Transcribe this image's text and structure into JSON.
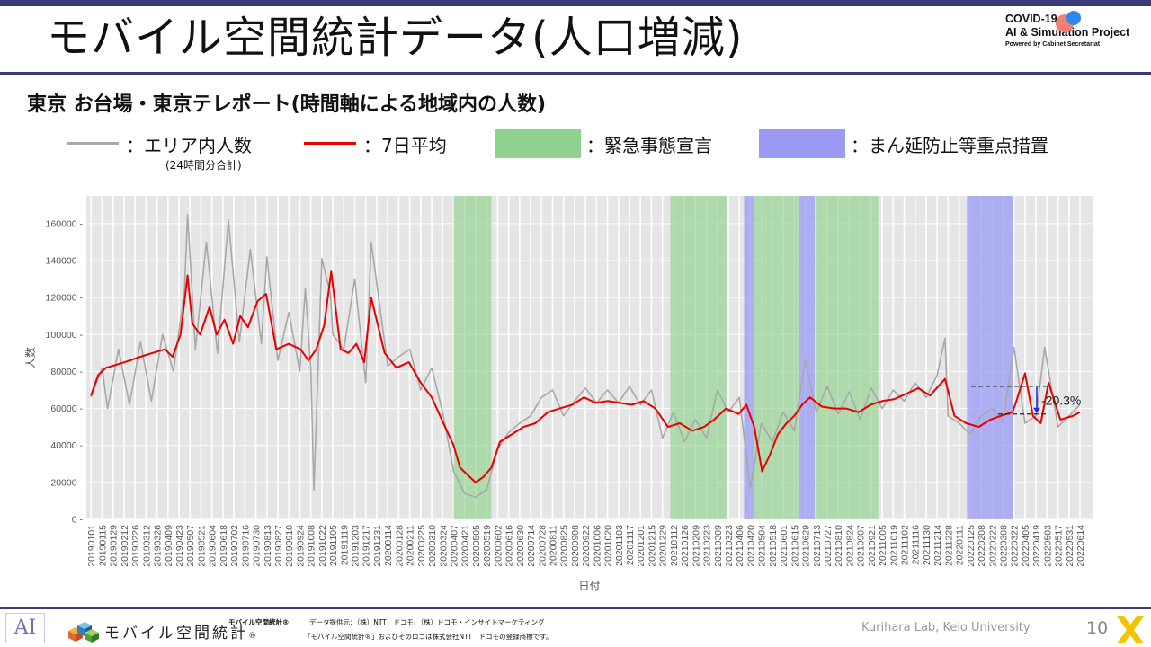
{
  "header": {
    "title": "モバイル空間統計データ(人口増減)",
    "logo_line1": "COVID-19",
    "logo_line2": "AI & Simulation Project",
    "logo_line3": "Powered by Cabinet Secretariat"
  },
  "subtitle": "東京 お台場・東京テレポート(時間軸による地域内の人数)",
  "legend": {
    "raw": "：エリア内人数",
    "raw_note": "(24時間分合計)",
    "avg": "：7日平均",
    "emergency": "：緊急事態宣言",
    "semi": "：まん延防止等重点措置"
  },
  "colors": {
    "header_bar": "#3b3b7a",
    "raw_line": "#a8a8a8",
    "avg_line": "#e60000",
    "emergency_fill": "#8fd28f",
    "semi_fill": "#9a9af5",
    "plot_bg": "#e5e5e5",
    "annotation_arrow": "#1a2ee0"
  },
  "chart_data": {
    "type": "line",
    "xlabel": "日付",
    "ylabel": "人数",
    "ylim": [
      0,
      175000
    ],
    "yticks": [
      0,
      20000,
      40000,
      60000,
      80000,
      100000,
      120000,
      140000,
      160000
    ],
    "xlim": [
      "2018-12-26",
      "2022-06-30"
    ],
    "xtick_labels": [
      "20190101",
      "20190115",
      "20190129",
      "20190212",
      "20190226",
      "20190312",
      "20190326",
      "20190409",
      "20190423",
      "20190507",
      "20190521",
      "20190604",
      "20190618",
      "20190702",
      "20190716",
      "20190730",
      "20190813",
      "20190827",
      "20190910",
      "20190924",
      "20191008",
      "20191022",
      "20191105",
      "20191119",
      "20191203",
      "20191217",
      "20191231",
      "20200114",
      "20200128",
      "20200211",
      "20200225",
      "20200310",
      "20200324",
      "20200407",
      "20200421",
      "20200505",
      "20200519",
      "20200602",
      "20200616",
      "20200630",
      "20200714",
      "20200728",
      "20200811",
      "20200825",
      "20200908",
      "20200922",
      "20201006",
      "20201020",
      "20201103",
      "20201117",
      "20201201",
      "20201215",
      "20201229",
      "20210112",
      "20210126",
      "20210209",
      "20210223",
      "20210309",
      "20210323",
      "20210406",
      "20210420",
      "20210504",
      "20210518",
      "20210601",
      "20210615",
      "20210629",
      "20210713",
      "20210727",
      "20210810",
      "20210824",
      "20210907",
      "20210921",
      "20211005",
      "20211019",
      "20211102",
      "20211116",
      "20211130",
      "20211214",
      "20211228",
      "20220111",
      "20220125",
      "20220208",
      "20220222",
      "20220308",
      "20220322",
      "20220405",
      "20220419",
      "20220503",
      "20220517",
      "20220531",
      "20220614"
    ],
    "emergency_periods": [
      [
        "2020-04-07",
        "2020-05-25"
      ],
      [
        "2021-01-08",
        "2021-03-21"
      ],
      [
        "2021-04-25",
        "2021-06-20"
      ],
      [
        "2021-07-12",
        "2021-09-30"
      ]
    ],
    "semi_periods": [
      [
        "2021-04-12",
        "2021-04-24"
      ],
      [
        "2021-06-21",
        "2021-07-11"
      ],
      [
        "2022-01-21",
        "2022-03-21"
      ]
    ],
    "series": [
      {
        "name": "エリア内人数",
        "x": [
          "2019-01-01",
          "2019-01-15",
          "2019-01-22",
          "2019-02-05",
          "2019-02-19",
          "2019-03-05",
          "2019-03-19",
          "2019-04-02",
          "2019-04-16",
          "2019-04-30",
          "2019-05-04",
          "2019-05-14",
          "2019-05-28",
          "2019-06-11",
          "2019-06-25",
          "2019-07-09",
          "2019-07-23",
          "2019-08-06",
          "2019-08-13",
          "2019-08-27",
          "2019-09-10",
          "2019-09-24",
          "2019-10-01",
          "2019-10-08",
          "2019-10-12",
          "2019-10-22",
          "2019-11-02",
          "2019-11-05",
          "2019-11-19",
          "2019-12-03",
          "2019-12-17",
          "2019-12-24",
          "2020-01-14",
          "2020-01-28",
          "2020-02-11",
          "2020-02-25",
          "2020-03-10",
          "2020-03-24",
          "2020-04-07",
          "2020-04-21",
          "2020-05-05",
          "2020-05-19",
          "2020-06-02",
          "2020-06-16",
          "2020-06-30",
          "2020-07-14",
          "2020-07-28",
          "2020-08-11",
          "2020-08-25",
          "2020-09-08",
          "2020-09-22",
          "2020-10-06",
          "2020-10-20",
          "2020-11-03",
          "2020-11-17",
          "2020-12-01",
          "2020-12-15",
          "2020-12-29",
          "2021-01-12",
          "2021-01-26",
          "2021-02-09",
          "2021-02-23",
          "2021-03-09",
          "2021-03-23",
          "2021-04-06",
          "2021-04-20",
          "2021-05-04",
          "2021-05-18",
          "2021-06-01",
          "2021-06-15",
          "2021-06-29",
          "2021-07-13",
          "2021-07-27",
          "2021-08-10",
          "2021-08-24",
          "2021-09-07",
          "2021-09-21",
          "2021-10-05",
          "2021-10-19",
          "2021-11-02",
          "2021-11-16",
          "2021-11-30",
          "2021-12-14",
          "2021-12-24",
          "2021-12-28",
          "2022-01-11",
          "2022-01-25",
          "2022-02-08",
          "2022-02-22",
          "2022-03-08",
          "2022-03-22",
          "2022-04-05",
          "2022-04-19",
          "2022-04-30",
          "2022-05-17",
          "2022-05-31",
          "2022-06-14"
        ],
        "y": [
          66000,
          82000,
          60000,
          92000,
          62000,
          96000,
          64000,
          100000,
          80000,
          124000,
          165000,
          92000,
          150000,
          90000,
          162000,
          96000,
          146000,
          95000,
          142000,
          86000,
          112000,
          80000,
          125000,
          82000,
          16000,
          141000,
          122000,
          100000,
          92000,
          130000,
          74000,
          150000,
          83000,
          88000,
          92000,
          70000,
          82000,
          58000,
          26000,
          14000,
          12000,
          16000,
          38000,
          47000,
          52000,
          56000,
          66000,
          70000,
          56000,
          64000,
          71000,
          63000,
          70000,
          63000,
          72000,
          62000,
          70000,
          44000,
          58000,
          42000,
          54000,
          44000,
          70000,
          58000,
          66000,
          17000,
          52000,
          42000,
          58000,
          48000,
          86000,
          58000,
          72000,
          57000,
          69000,
          54000,
          71000,
          60000,
          70000,
          64000,
          74000,
          66000,
          78000,
          98000,
          56000,
          52000,
          46000,
          56000,
          60000,
          53000,
          93000,
          52000,
          56000,
          93000,
          50000,
          56000,
          62000
        ]
      },
      {
        "name": "7日平均",
        "x": [
          "2019-01-01",
          "2019-01-10",
          "2019-01-20",
          "2019-02-05",
          "2019-02-20",
          "2019-03-05",
          "2019-03-20",
          "2019-04-05",
          "2019-04-15",
          "2019-04-25",
          "2019-05-04",
          "2019-05-10",
          "2019-05-20",
          "2019-06-01",
          "2019-06-10",
          "2019-06-20",
          "2019-07-01",
          "2019-07-10",
          "2019-07-20",
          "2019-08-01",
          "2019-08-12",
          "2019-08-25",
          "2019-09-10",
          "2019-09-25",
          "2019-10-05",
          "2019-10-15",
          "2019-10-25",
          "2019-11-03",
          "2019-11-15",
          "2019-11-25",
          "2019-12-05",
          "2019-12-15",
          "2019-12-24",
          "2020-01-10",
          "2020-01-25",
          "2020-02-10",
          "2020-02-25",
          "2020-03-10",
          "2020-03-25",
          "2020-04-07",
          "2020-04-15",
          "2020-04-25",
          "2020-05-05",
          "2020-05-15",
          "2020-05-25",
          "2020-06-05",
          "2020-06-20",
          "2020-07-05",
          "2020-07-20",
          "2020-08-05",
          "2020-08-20",
          "2020-09-05",
          "2020-09-20",
          "2020-10-05",
          "2020-10-20",
          "2020-11-05",
          "2020-11-20",
          "2020-12-05",
          "2020-12-20",
          "2021-01-05",
          "2021-01-20",
          "2021-02-05",
          "2021-02-20",
          "2021-03-05",
          "2021-03-20",
          "2021-04-05",
          "2021-04-15",
          "2021-04-25",
          "2021-05-05",
          "2021-05-15",
          "2021-05-25",
          "2021-06-05",
          "2021-06-15",
          "2021-06-25",
          "2021-07-05",
          "2021-07-20",
          "2021-08-05",
          "2021-08-20",
          "2021-09-05",
          "2021-09-20",
          "2021-10-05",
          "2021-10-20",
          "2021-11-05",
          "2021-11-20",
          "2021-12-05",
          "2021-12-24",
          "2022-01-05",
          "2022-01-20",
          "2022-02-05",
          "2022-02-20",
          "2022-03-05",
          "2022-03-20",
          "2022-03-25",
          "2022-04-05",
          "2022-04-15",
          "2022-04-25",
          "2022-05-05",
          "2022-05-20",
          "2022-06-05",
          "2022-06-14"
        ],
        "y": [
          67000,
          78000,
          82000,
          84000,
          86000,
          88000,
          90000,
          92000,
          88000,
          100000,
          132000,
          106000,
          100000,
          115000,
          100000,
          108000,
          95000,
          110000,
          104000,
          118000,
          122000,
          92000,
          95000,
          92000,
          86000,
          92000,
          105000,
          134000,
          92000,
          90000,
          95000,
          85000,
          120000,
          90000,
          82000,
          85000,
          74000,
          66000,
          52000,
          40000,
          28000,
          24000,
          20000,
          23000,
          28000,
          42000,
          46000,
          50000,
          52000,
          58000,
          60000,
          62000,
          66000,
          63000,
          64000,
          63000,
          62000,
          64000,
          60000,
          50000,
          52000,
          48000,
          50000,
          54000,
          60000,
          57000,
          62000,
          50000,
          26000,
          35000,
          46000,
          52000,
          56000,
          62000,
          66000,
          61000,
          60000,
          60000,
          58000,
          62000,
          64000,
          65000,
          68000,
          71000,
          67000,
          76000,
          56000,
          52000,
          50000,
          54000,
          56000,
          58000,
          64000,
          79000,
          56000,
          52000,
          74000,
          54000,
          56000,
          58000
        ]
      }
    ],
    "annotation": {
      "label": "-20.3%",
      "from": 72000,
      "to": 57000
    }
  },
  "footer": {
    "mark": "AI",
    "brand": "モバイル空間統計",
    "brand_reg": "®",
    "small_title": "モバイル空間統計®",
    "provider": "データ提供元：（株）NTT　ドコモ、（株）ドコモ・インサイトマーケティング",
    "trademark": "「モバイル空間統計®」およびそのロゴは株式会社NTT　ドコモの登録商標です。",
    "credit": "Kurihara Lab, Keio University",
    "page_number": "10"
  }
}
